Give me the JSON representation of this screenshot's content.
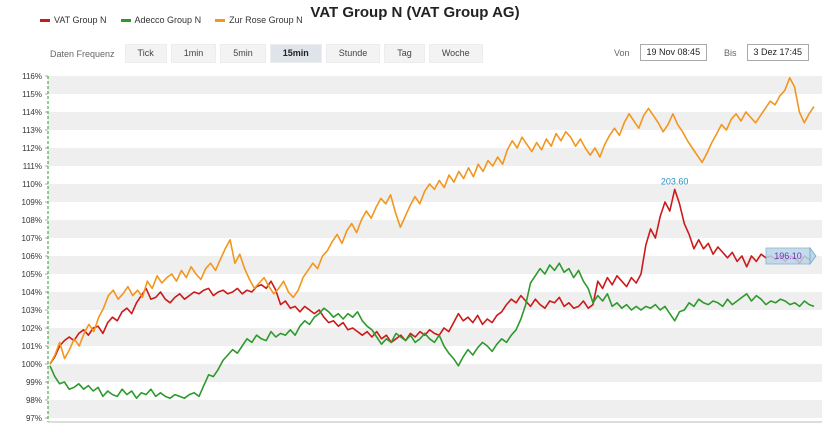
{
  "header": {
    "title": "VAT Group N (VAT Group AG)"
  },
  "legend": [
    {
      "label": "VAT Group N",
      "color": "#cc1a1a"
    },
    {
      "label": "Adecco Group N",
      "color": "#2e9a2e"
    },
    {
      "label": "Zur Rose Group N",
      "color": "#f2961e"
    }
  ],
  "toolbar": {
    "freq_label": "Daten Frequenz",
    "buttons": [
      "Tick",
      "1min",
      "5min",
      "15min",
      "Stunde",
      "Tag",
      "Woche"
    ],
    "active": "15min",
    "from_label": "Von",
    "from_value": "19 Nov 08:45",
    "to_label": "Bis",
    "to_value": "3 Dez 17:45"
  },
  "chart_data": {
    "type": "line",
    "y_unit": "%",
    "ylim": [
      97,
      116
    ],
    "y_ticks": [
      "97%",
      "98%",
      "99%",
      "100%",
      "101%",
      "102%",
      "103%",
      "104%",
      "105%",
      "106%",
      "107%",
      "108%",
      "109%",
      "110%",
      "111%",
      "112%",
      "113%",
      "114%",
      "115%",
      "116%"
    ],
    "grid": true,
    "legend_position": "top-left",
    "annotations": {
      "max_label": "203.60",
      "last_label": "196.10"
    },
    "series": [
      {
        "name": "VAT Group N",
        "color": "#cc1a1a",
        "values": [
          100,
          100.4,
          101.0,
          101.3,
          101.5,
          101.3,
          101.7,
          101.9,
          101.6,
          102.0,
          102.1,
          101.7,
          102.3,
          102.6,
          102.4,
          102.9,
          103.1,
          102.8,
          103.4,
          103.8,
          104.2,
          103.6,
          103.7,
          104.0,
          103.6,
          103.4,
          103.7,
          103.9,
          103.6,
          103.8,
          104.0,
          103.9,
          104.1,
          104.2,
          103.8,
          104.0,
          104.1,
          103.9,
          104.0,
          104.2,
          103.9,
          104.1,
          104.0,
          104.3,
          104.4,
          104.2,
          104.6,
          104.1,
          103.3,
          103.5,
          103.1,
          103.2,
          102.9,
          103.2,
          103.0,
          102.8,
          103.0,
          102.6,
          102.3,
          102.4,
          102.1,
          102.3,
          101.9,
          102.0,
          101.8,
          101.6,
          101.8,
          101.5,
          101.8,
          101.4,
          101.6,
          101.2,
          101.4,
          101.6,
          101.3,
          101.7,
          101.5,
          101.8,
          101.6,
          101.9,
          101.7,
          101.6,
          102.0,
          101.8,
          102.3,
          102.8,
          102.4,
          102.6,
          102.3,
          102.7,
          102.2,
          102.5,
          102.3,
          102.7,
          102.9,
          103.3,
          103.6,
          103.4,
          103.8,
          103.5,
          103.2,
          103.6,
          103.3,
          103.1,
          103.5,
          103.4,
          103.7,
          103.2,
          103.4,
          103.1,
          103.2,
          103.5,
          103.1,
          103.3,
          104.6,
          104.2,
          104.8,
          104.4,
          104.9,
          104.6,
          104.3,
          104.8,
          104.5,
          105.0,
          106.6,
          107.5,
          107.0,
          108.2,
          109.0,
          108.5,
          109.7,
          108.9,
          107.8,
          107.2,
          106.4,
          106.9,
          106.4,
          106.7,
          106.1,
          106.5,
          106.2,
          105.9,
          106.2,
          105.7,
          106.0,
          105.4,
          106.0,
          105.7,
          106.1,
          105.9,
          106.0,
          105.8,
          106.0,
          105.7,
          106.0,
          105.9,
          105.6,
          106.0,
          105.8,
          106.0
        ]
      },
      {
        "name": "Adecco Group N",
        "color": "#2e9a2e",
        "values": [
          99.9,
          99.3,
          98.9,
          99.0,
          98.6,
          98.7,
          98.9,
          98.6,
          98.8,
          98.5,
          98.7,
          98.2,
          98.5,
          98.3,
          98.2,
          98.6,
          98.3,
          98.5,
          98.1,
          98.4,
          98.3,
          98.6,
          98.2,
          98.4,
          98.2,
          98.1,
          98.3,
          98.2,
          98.1,
          98.3,
          98.4,
          98.2,
          98.8,
          99.4,
          99.3,
          99.7,
          100.2,
          100.5,
          100.8,
          100.6,
          101.0,
          101.4,
          101.2,
          101.6,
          101.4,
          101.3,
          101.8,
          101.5,
          101.7,
          101.6,
          101.9,
          101.6,
          102.1,
          102.4,
          102.2,
          102.6,
          102.8,
          103.1,
          102.9,
          102.6,
          102.8,
          102.5,
          102.8,
          102.6,
          102.9,
          102.4,
          102.1,
          101.9,
          101.5,
          101.1,
          101.4,
          101.2,
          101.7,
          101.5,
          101.3,
          101.6,
          101.2,
          101.4,
          101.7,
          101.4,
          101.2,
          101.6,
          101.0,
          100.6,
          100.3,
          99.9,
          100.4,
          100.8,
          100.5,
          100.9,
          101.2,
          101.0,
          100.7,
          101.1,
          101.4,
          101.2,
          101.6,
          101.9,
          102.5,
          103.3,
          104.5,
          104.9,
          105.3,
          105.0,
          105.5,
          105.2,
          105.6,
          105.1,
          105.3,
          104.8,
          105.2,
          104.6,
          104.2,
          103.4,
          103.8,
          103.5,
          103.9,
          103.2,
          103.4,
          103.1,
          103.3,
          103.0,
          103.2,
          103.0,
          103.2,
          103.1,
          103.3,
          103.0,
          103.2,
          102.8,
          102.4,
          102.9,
          103.0,
          103.4,
          103.2,
          103.6,
          103.4,
          103.3,
          103.5,
          103.4,
          103.2,
          103.6,
          103.3,
          103.5,
          103.7,
          103.9,
          103.5,
          103.8,
          103.6,
          103.3,
          103.5,
          103.4,
          103.6,
          103.5,
          103.3,
          103.4,
          103.2,
          103.5,
          103.3,
          103.2
        ]
      },
      {
        "name": "Zur Rose Group N",
        "color": "#f2961e",
        "values": [
          100.0,
          100.5,
          101.2,
          100.3,
          100.8,
          101.4,
          101.0,
          101.7,
          102.2,
          101.8,
          102.6,
          103.1,
          103.8,
          104.1,
          103.6,
          103.9,
          104.3,
          103.8,
          104.1,
          103.7,
          104.6,
          104.2,
          104.9,
          104.5,
          104.8,
          105.0,
          104.6,
          105.2,
          104.8,
          105.4,
          105.0,
          104.7,
          105.3,
          105.6,
          105.2,
          105.8,
          106.4,
          106.9,
          105.6,
          106.1,
          105.3,
          104.7,
          104.2,
          104.5,
          104.8,
          104.3,
          103.9,
          104.2,
          104.6,
          104.0,
          103.7,
          104.1,
          104.8,
          105.2,
          105.6,
          105.3,
          106.0,
          106.3,
          106.8,
          107.2,
          106.7,
          107.4,
          107.8,
          107.3,
          108.0,
          108.5,
          108.1,
          108.7,
          109.2,
          108.9,
          109.4,
          108.4,
          107.6,
          108.2,
          108.8,
          109.3,
          108.9,
          109.6,
          110.0,
          109.7,
          110.2,
          109.8,
          110.5,
          110.1,
          110.7,
          110.3,
          110.9,
          110.4,
          111.1,
          110.7,
          111.3,
          111.0,
          111.5,
          111.1,
          111.9,
          112.4,
          112.0,
          112.6,
          112.2,
          111.8,
          112.3,
          111.9,
          112.5,
          112.1,
          112.8,
          112.4,
          112.9,
          112.6,
          112.1,
          112.5,
          112.0,
          111.6,
          112.0,
          111.5,
          112.2,
          112.7,
          113.1,
          112.7,
          113.4,
          113.9,
          113.5,
          113.1,
          113.8,
          114.2,
          113.8,
          113.4,
          112.9,
          113.3,
          113.9,
          113.3,
          112.9,
          112.4,
          112.0,
          111.6,
          111.2,
          111.7,
          112.3,
          112.8,
          113.3,
          113.0,
          113.6,
          113.9,
          113.5,
          114.0,
          113.7,
          113.4,
          113.8,
          114.2,
          114.6,
          114.4,
          114.9,
          115.2,
          115.9,
          115.4,
          114.0,
          113.4,
          113.9,
          114.3
        ]
      }
    ]
  }
}
